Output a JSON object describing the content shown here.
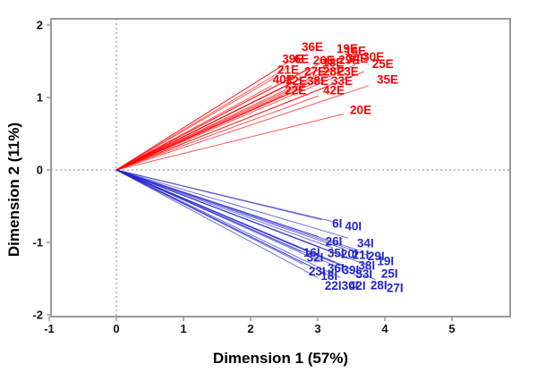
{
  "chart_data": {
    "type": "scatter",
    "subtype": "biplot-vectors",
    "title": "",
    "xlabel": "Dimension 1 (57%)",
    "ylabel": "Dimension 2 (11%)",
    "xlim": [
      -0.97,
      5.87
    ],
    "ylim": [
      -2.02,
      2.09
    ],
    "x_ticks": [
      -1,
      0,
      1,
      2,
      3,
      4,
      5
    ],
    "y_ticks": [
      -2,
      -1,
      0,
      1,
      2
    ],
    "grid": false,
    "reference_lines": {
      "vertical_at_x": 0,
      "horizontal_at_y": 0,
      "style": "dashed"
    },
    "legend": "none",
    "colors": {
      "series_E": "#ff0000",
      "series_I": "#2626cc",
      "frame": "#9a9a9a",
      "reference": "#8a8a8a",
      "tick_text": "#111111"
    },
    "series": [
      {
        "name": "E",
        "color": "#ff0000",
        "points": [
          {
            "label": "36E",
            "x": 2.92,
            "y": 1.7
          },
          {
            "label": "19E",
            "x": 3.44,
            "y": 1.67
          },
          {
            "label": "16E",
            "x": 3.56,
            "y": 1.64
          },
          {
            "label": "39E",
            "x": 2.63,
            "y": 1.53
          },
          {
            "label": "6E",
            "x": 2.76,
            "y": 1.53
          },
          {
            "label": "26E",
            "x": 3.09,
            "y": 1.51
          },
          {
            "label": "18E",
            "x": 3.23,
            "y": 1.48
          },
          {
            "label": "29E",
            "x": 3.47,
            "y": 1.52
          },
          {
            "label": "34E",
            "x": 3.59,
            "y": 1.54
          },
          {
            "label": "30E",
            "x": 3.83,
            "y": 1.56
          },
          {
            "label": "21E",
            "x": 2.56,
            "y": 1.38
          },
          {
            "label": "27E",
            "x": 2.96,
            "y": 1.36
          },
          {
            "label": "28E",
            "x": 3.24,
            "y": 1.36
          },
          {
            "label": "23E",
            "x": 3.45,
            "y": 1.36
          },
          {
            "label": "25E",
            "x": 3.97,
            "y": 1.46
          },
          {
            "label": "40E",
            "x": 2.49,
            "y": 1.25
          },
          {
            "label": "32E",
            "x": 2.68,
            "y": 1.23
          },
          {
            "label": "38E",
            "x": 3.0,
            "y": 1.23
          },
          {
            "label": "33E",
            "x": 3.36,
            "y": 1.23
          },
          {
            "label": "35E",
            "x": 4.04,
            "y": 1.25
          },
          {
            "label": "22E",
            "x": 2.67,
            "y": 1.1
          },
          {
            "label": "42E",
            "x": 3.24,
            "y": 1.1
          },
          {
            "label": "20E",
            "x": 3.64,
            "y": 0.83
          }
        ]
      },
      {
        "name": "I",
        "color": "#2626cc",
        "points": [
          {
            "label": "6I",
            "x": 3.29,
            "y": -0.74
          },
          {
            "label": "40I",
            "x": 3.53,
            "y": -0.78
          },
          {
            "label": "26I",
            "x": 3.24,
            "y": -0.99
          },
          {
            "label": "34I",
            "x": 3.71,
            "y": -1.01
          },
          {
            "label": "16I",
            "x": 2.91,
            "y": -1.14
          },
          {
            "label": "35I",
            "x": 3.27,
            "y": -1.15
          },
          {
            "label": "20I",
            "x": 3.47,
            "y": -1.16
          },
          {
            "label": "21I",
            "x": 3.64,
            "y": -1.17
          },
          {
            "label": "29I",
            "x": 3.87,
            "y": -1.19
          },
          {
            "label": "32I",
            "x": 2.96,
            "y": -1.21
          },
          {
            "label": "19I",
            "x": 4.01,
            "y": -1.26
          },
          {
            "label": "38I",
            "x": 3.73,
            "y": -1.32
          },
          {
            "label": "36I",
            "x": 3.27,
            "y": -1.36
          },
          {
            "label": "23I",
            "x": 2.99,
            "y": -1.4
          },
          {
            "label": "39I",
            "x": 3.49,
            "y": -1.38
          },
          {
            "label": "33I",
            "x": 3.69,
            "y": -1.44
          },
          {
            "label": "25I",
            "x": 4.07,
            "y": -1.43
          },
          {
            "label": "18I",
            "x": 3.17,
            "y": -1.46
          },
          {
            "label": "22I",
            "x": 3.23,
            "y": -1.6
          },
          {
            "label": "30I",
            "x": 3.48,
            "y": -1.6
          },
          {
            "label": "42I",
            "x": 3.59,
            "y": -1.6
          },
          {
            "label": "28I",
            "x": 3.91,
            "y": -1.59
          },
          {
            "label": "27I",
            "x": 4.15,
            "y": -1.63
          }
        ]
      }
    ]
  }
}
